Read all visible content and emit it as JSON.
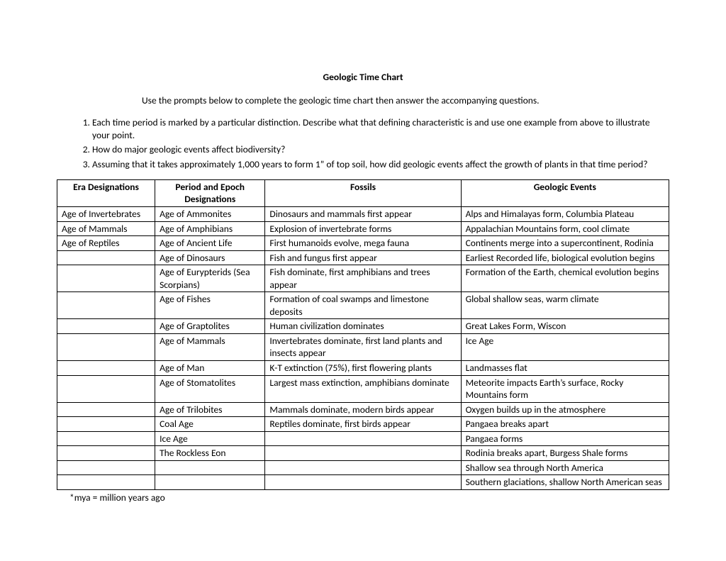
{
  "title": "Geologic Time Chart",
  "instructions": "Use the prompts below to complete the geologic time chart then answer the accompanying questions.",
  "questions": [
    "Each time period is marked by a particular distinction.  Describe what that defining characteristic is and use one example from above to illustrate your point.",
    "How do major geologic events affect biodiversity?",
    "Assuming that it takes approximately 1,000 years to form 1” of top soil, how did geologic events affect the growth of plants in that time period?"
  ],
  "table": {
    "headers": [
      "Era Designations",
      "Period and Epoch Designations",
      "Fossils",
      "Geologic Events"
    ],
    "rows": [
      [
        "Age of Invertebrates",
        "Age of Ammonites",
        "Dinosaurs and mammals first appear",
        "Alps and Himalayas form, Columbia Plateau"
      ],
      [
        "Age of Mammals",
        "Age of Amphibians",
        "Explosion of invertebrate forms",
        "Appalachian Mountains form, cool climate"
      ],
      [
        "Age of Reptiles",
        "Age of Ancient Life",
        "First humanoids evolve, mega fauna",
        "Continents merge into a supercontinent, Rodinia"
      ],
      [
        "",
        "Age of Dinosaurs",
        "Fish and fungus first appear",
        "Earliest Recorded life, biological evolution begins"
      ],
      [
        "",
        "Age of Eurypterids (Sea Scorpians)",
        "Fish dominate, first amphibians and trees appear",
        "Formation of the Earth, chemical evolution begins"
      ],
      [
        "",
        "Age of Fishes",
        "Formation of coal swamps and limestone deposits",
        "Global shallow seas, warm climate"
      ],
      [
        "",
        "Age of Graptolites",
        "Human civilization dominates",
        "Great Lakes Form, Wiscon"
      ],
      [
        "",
        "Age of Mammals",
        "Invertebrates dominate, first land plants and insects appear",
        "Ice Age"
      ],
      [
        "",
        "Age of Man",
        "K-T extinction (75%), first flowering plants",
        "Landmasses flat"
      ],
      [
        "",
        "Age of Stomatolites",
        "Largest mass extinction, amphibians dominate",
        "Meteorite impacts Earth’s surface, Rocky Mountains form"
      ],
      [
        "",
        "Age of Trilobites",
        "Mammals dominate, modern birds appear",
        "Oxygen builds up in the atmosphere"
      ],
      [
        "",
        "Coal Age",
        "Reptiles dominate, first birds appear",
        "Pangaea breaks apart"
      ],
      [
        "",
        "Ice Age",
        "",
        "Pangaea forms"
      ],
      [
        "",
        "The Rockless Eon",
        "",
        "Rodinia breaks apart, Burgess Shale forms"
      ],
      [
        "",
        "",
        "",
        "Shallow sea through North America"
      ],
      [
        "",
        "",
        "",
        "Southern glaciations, shallow North American seas"
      ]
    ]
  },
  "footnote": "*mya = million years ago"
}
